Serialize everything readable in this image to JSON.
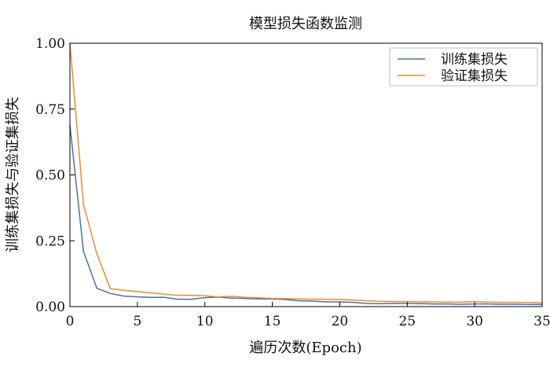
{
  "chart_data": {
    "type": "line",
    "title": "模型损失函数监测",
    "xlabel": "遍历次数(Epoch)",
    "ylabel": "训练集损失与验证集损失",
    "xlim": [
      0,
      35
    ],
    "ylim": [
      0,
      1.0
    ],
    "xticks": [
      "0",
      "5",
      "10",
      "15",
      "20",
      "25",
      "30",
      "35"
    ],
    "yticks": [
      "0.00",
      "0.25",
      "0.50",
      "0.75",
      "1.00"
    ],
    "legend_position": "top-right",
    "grid": false,
    "series": [
      {
        "name": "训练集损失",
        "color": "#4a72a6",
        "x": [
          0,
          1,
          2,
          3,
          4,
          5,
          6,
          7,
          8,
          9,
          10,
          11,
          12,
          13,
          14,
          15,
          16,
          17,
          18,
          19,
          20,
          21,
          22,
          23,
          24,
          25,
          26,
          27,
          28,
          29,
          30,
          31,
          32,
          33,
          34,
          35
        ],
        "values": [
          0.69,
          0.21,
          0.07,
          0.05,
          0.04,
          0.037,
          0.035,
          0.035,
          0.028,
          0.028,
          0.034,
          0.036,
          0.032,
          0.031,
          0.029,
          0.029,
          0.027,
          0.022,
          0.021,
          0.018,
          0.018,
          0.016,
          0.012,
          0.011,
          0.012,
          0.012,
          0.011,
          0.01,
          0.01,
          0.009,
          0.01,
          0.01,
          0.009,
          0.009,
          0.008,
          0.008
        ]
      },
      {
        "name": "验证集损失",
        "color": "#f28a30",
        "x": [
          0,
          1,
          2,
          3,
          4,
          5,
          6,
          7,
          8,
          9,
          10,
          11,
          12,
          13,
          14,
          15,
          16,
          17,
          18,
          19,
          20,
          21,
          22,
          23,
          24,
          25,
          26,
          27,
          28,
          29,
          30,
          31,
          32,
          33,
          34,
          35
        ],
        "values": [
          1.0,
          0.39,
          0.2,
          0.068,
          0.062,
          0.057,
          0.052,
          0.047,
          0.043,
          0.043,
          0.041,
          0.037,
          0.039,
          0.035,
          0.033,
          0.031,
          0.03,
          0.029,
          0.028,
          0.028,
          0.027,
          0.025,
          0.022,
          0.02,
          0.019,
          0.019,
          0.018,
          0.018,
          0.017,
          0.017,
          0.019,
          0.017,
          0.016,
          0.016,
          0.016,
          0.014
        ]
      }
    ]
  }
}
